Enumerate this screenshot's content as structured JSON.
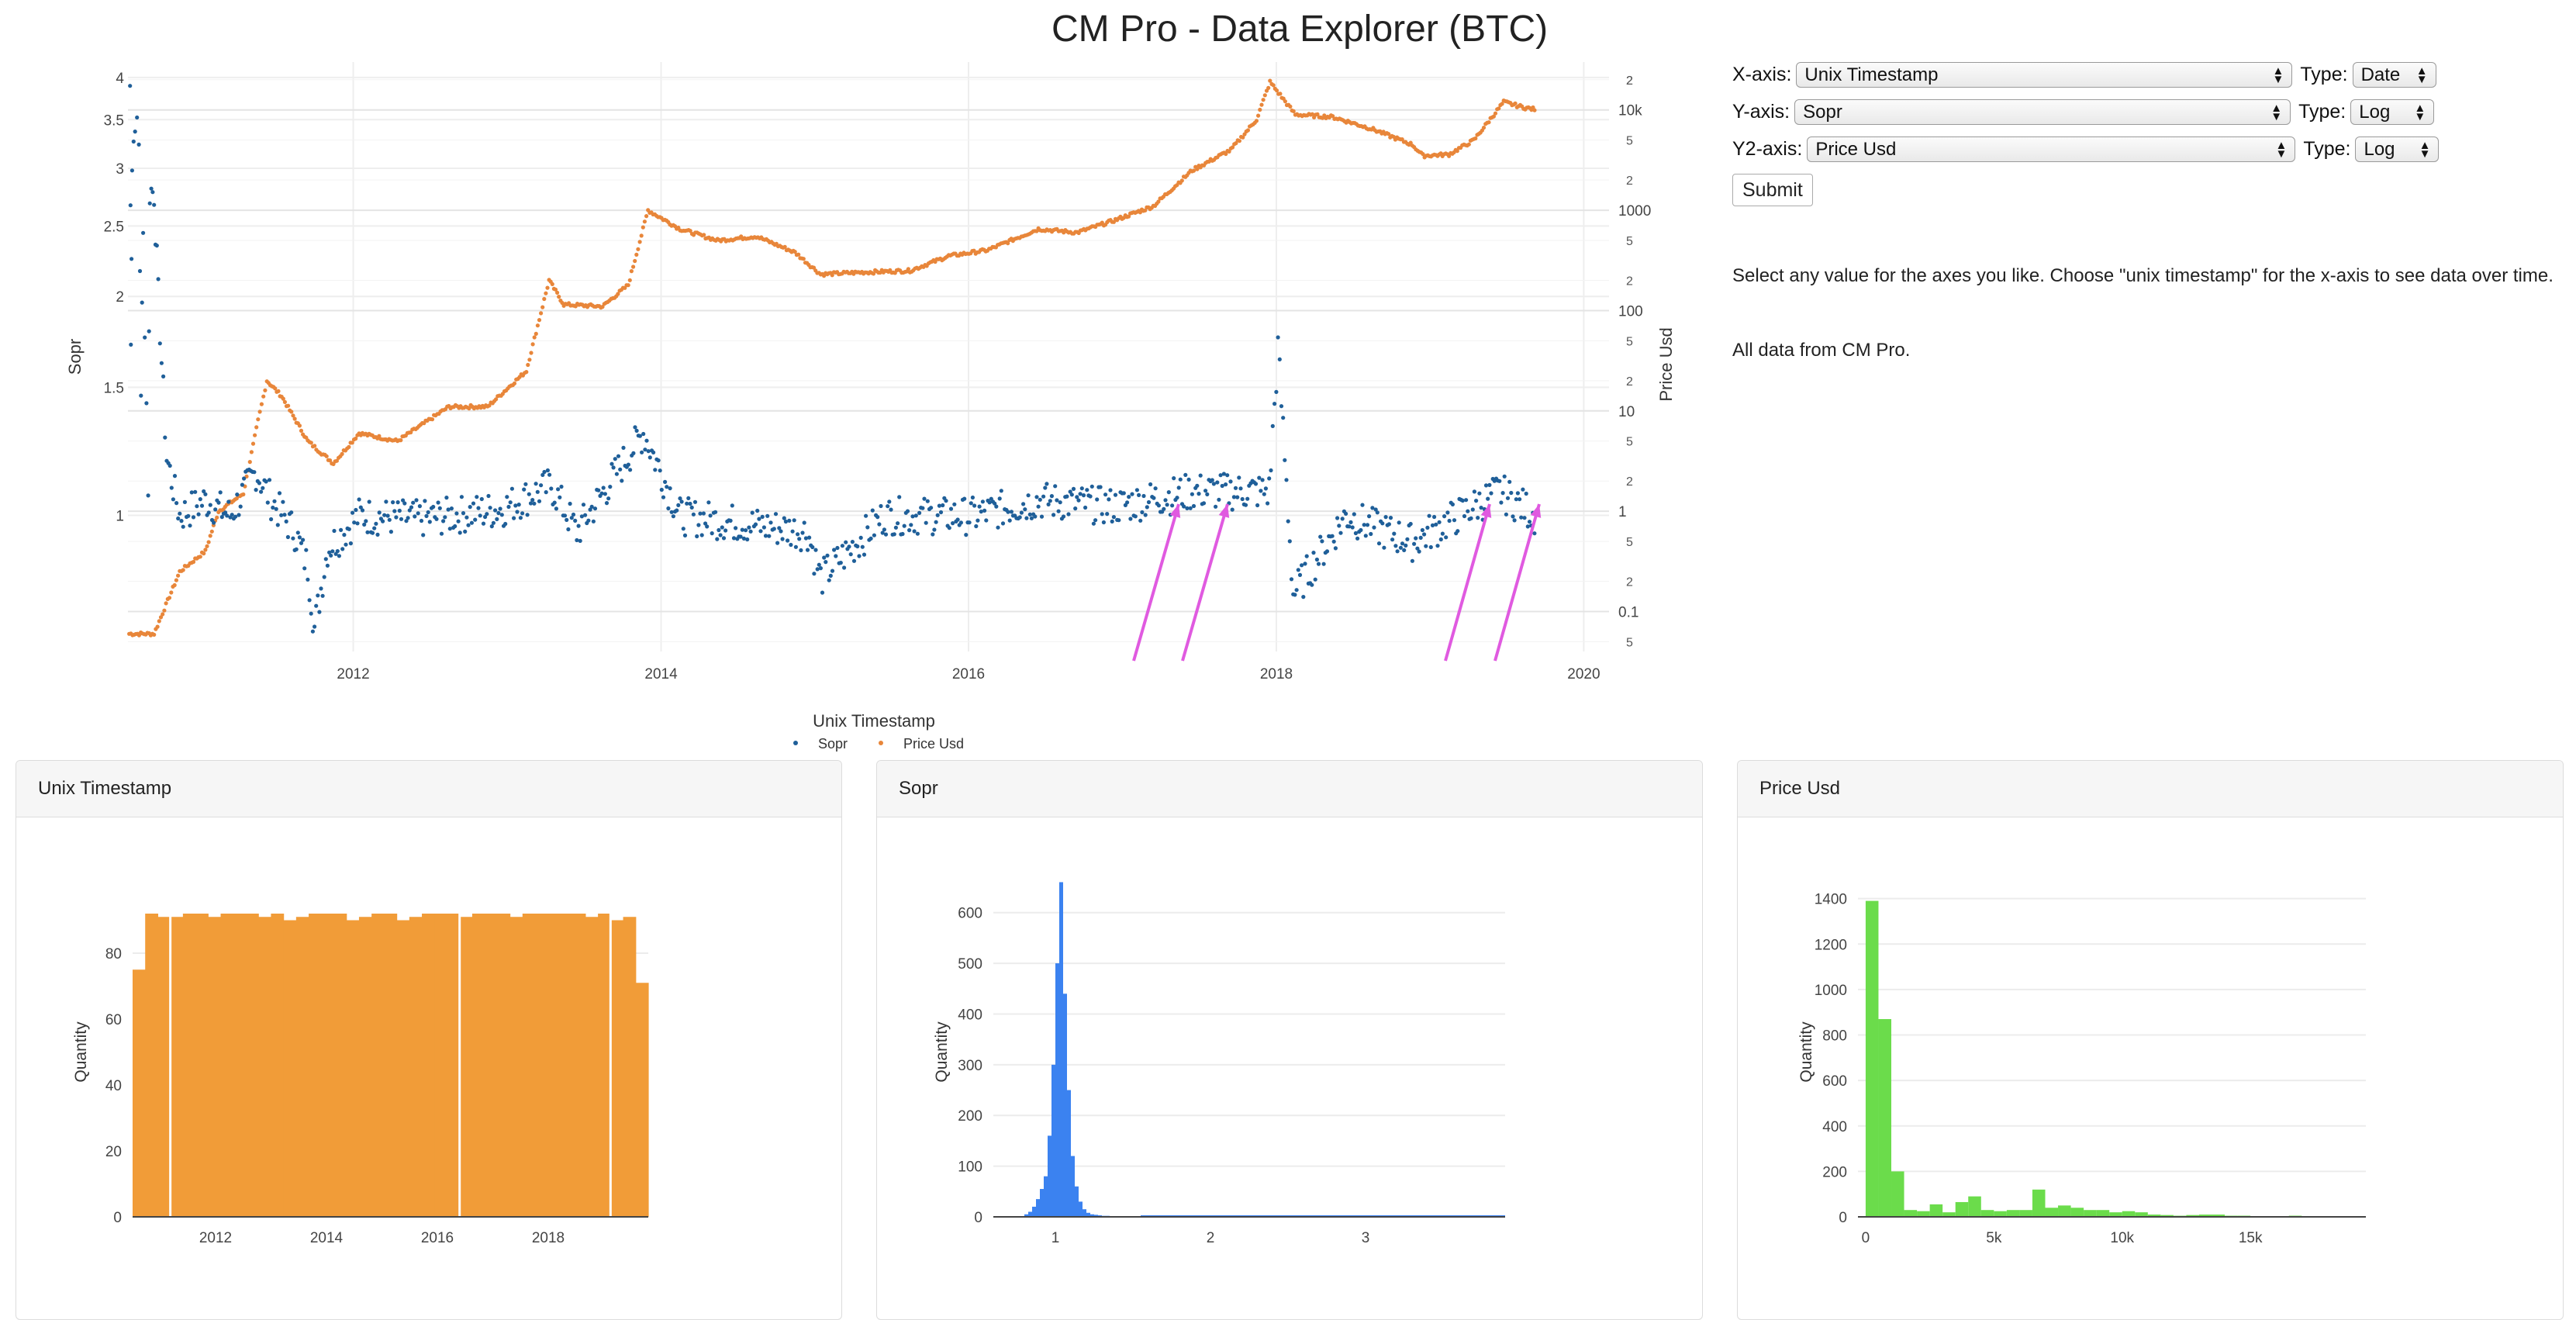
{
  "page_title": "CM Pro - Data Explorer (BTC)",
  "controls": {
    "x_axis": {
      "label": "X-axis:",
      "value": "Unix Timestamp",
      "type_label": "Type:",
      "type_value": "Date"
    },
    "y_axis": {
      "label": "Y-axis:",
      "value": "Sopr",
      "type_label": "Type:",
      "type_value": "Log"
    },
    "y2_axis": {
      "label": "Y2-axis:",
      "value": "Price Usd",
      "type_label": "Type:",
      "type_value": "Log"
    },
    "submit_label": "Submit"
  },
  "info": {
    "text1": "Select any value for the axes you like. Choose \"unix timestamp\" for the x-axis to see data over time.",
    "text2": "All data from CM Pro."
  },
  "colors": {
    "sopr": "#1f5f99",
    "price": "#e8863a",
    "hist_time": "#f19c38",
    "hist_sopr": "#3b82f0",
    "hist_price": "#6bdc4b",
    "arrow": "#e05ae0"
  },
  "chart_data": [
    {
      "type": "scatter",
      "xlabel": "Unix Timestamp",
      "ylabel": "Sopr",
      "y2label": "Price Usd",
      "x_scale": "date",
      "y_scale": "log",
      "y2_scale": "log",
      "xlim": [
        "2010-07-15",
        "2020-03-01"
      ],
      "ylim": [
        0.65,
        4.2
      ],
      "y2lim": [
        0.04,
        30000
      ],
      "x_ticks": [
        "2012",
        "2014",
        "2016",
        "2018",
        "2020"
      ],
      "y_ticks": [
        "1",
        "1.5",
        "2",
        "2.5",
        "3",
        "3.5",
        "4"
      ],
      "y2_ticks": [
        "0.1",
        "1",
        "10",
        "100",
        "1000",
        "10k"
      ],
      "y2_minor_labels": [
        "5",
        "2"
      ],
      "legend": [
        "Sopr",
        "Price Usd"
      ],
      "legend_position": "bottom",
      "series": [
        {
          "name": "Price Usd",
          "points": [
            [
              "2010-07-18",
              0.06
            ],
            [
              "2010-09-15",
              0.06
            ],
            [
              "2010-11-15",
              0.25
            ],
            [
              "2011-01-15",
              0.4
            ],
            [
              "2011-02-15",
              1.0
            ],
            [
              "2011-04-15",
              1.5
            ],
            [
              "2011-05-20",
              8
            ],
            [
              "2011-06-10",
              20
            ],
            [
              "2011-07-15",
              14
            ],
            [
              "2011-09-15",
              5
            ],
            [
              "2011-11-15",
              3
            ],
            [
              "2012-01-15",
              6
            ],
            [
              "2012-04-15",
              5
            ],
            [
              "2012-08-15",
              11
            ],
            [
              "2012-11-15",
              11
            ],
            [
              "2013-02-15",
              25
            ],
            [
              "2013-04-10",
              200
            ],
            [
              "2013-05-15",
              115
            ],
            [
              "2013-08-15",
              110
            ],
            [
              "2013-10-15",
              180
            ],
            [
              "2013-12-01",
              1000
            ],
            [
              "2014-02-15",
              650
            ],
            [
              "2014-05-15",
              500
            ],
            [
              "2014-08-15",
              550
            ],
            [
              "2014-11-15",
              380
            ],
            [
              "2015-01-15",
              230
            ],
            [
              "2015-04-15",
              240
            ],
            [
              "2015-08-15",
              250
            ],
            [
              "2015-11-15",
              350
            ],
            [
              "2016-02-15",
              400
            ],
            [
              "2016-06-15",
              650
            ],
            [
              "2016-09-15",
              600
            ],
            [
              "2016-12-15",
              800
            ],
            [
              "2017-03-15",
              1100
            ],
            [
              "2017-06-15",
              2500
            ],
            [
              "2017-09-15",
              4000
            ],
            [
              "2017-11-15",
              8000
            ],
            [
              "2017-12-17",
              19000
            ],
            [
              "2018-02-15",
              9000
            ],
            [
              "2018-05-15",
              8500
            ],
            [
              "2018-08-15",
              6500
            ],
            [
              "2018-11-20",
              4500
            ],
            [
              "2018-12-15",
              3500
            ],
            [
              "2019-02-15",
              3600
            ],
            [
              "2019-04-15",
              5000
            ],
            [
              "2019-06-25",
              12000
            ],
            [
              "2019-08-15",
              10500
            ],
            [
              "2019-09-10",
              10100
            ]
          ]
        },
        {
          "name": "Sopr",
          "points": [
            [
              "2010-07-20",
              3.9
            ],
            [
              "2010-07-25",
              3.0
            ],
            [
              "2010-08-01",
              3.55
            ],
            [
              "2010-08-10",
              3.2
            ],
            [
              "2010-08-20",
              2.4
            ],
            [
              "2010-09-05",
              2.8
            ],
            [
              "2010-09-15",
              2.78
            ],
            [
              "2010-09-25",
              2.0
            ],
            [
              "2010-07-22",
              1.8
            ],
            [
              "2010-08-15",
              1.5
            ],
            [
              "2010-09-01",
              1.1
            ],
            [
              "2010-10-15",
              1.2
            ],
            [
              "2010-11-15",
              1.0
            ],
            [
              "2011-01-15",
              1.05
            ],
            [
              "2011-03-15",
              1.0
            ],
            [
              "2011-05-15",
              1.15
            ],
            [
              "2011-06-20",
              1.05
            ],
            [
              "2011-08-15",
              0.95
            ],
            [
              "2011-09-15",
              0.85
            ],
            [
              "2011-10-01",
              0.7
            ],
            [
              "2011-11-01",
              0.9
            ],
            [
              "2012-01-15",
              1.0
            ],
            [
              "2012-06-15",
              0.99
            ],
            [
              "2012-12-15",
              1.02
            ],
            [
              "2013-04-15",
              1.1
            ],
            [
              "2013-06-15",
              0.95
            ],
            [
              "2013-11-20",
              1.3
            ],
            [
              "2014-02-15",
              1.0
            ],
            [
              "2014-06-15",
              0.98
            ],
            [
              "2014-12-15",
              0.95
            ],
            [
              "2015-01-15",
              0.82
            ],
            [
              "2015-06-15",
              1.0
            ],
            [
              "2016-01-15",
              1.0
            ],
            [
              "2016-06-15",
              1.05
            ],
            [
              "2016-12-15",
              1.03
            ],
            [
              "2017-06-15",
              1.08
            ],
            [
              "2017-12-15",
              1.08
            ],
            [
              "2018-01-05",
              1.7
            ],
            [
              "2018-02-10",
              0.78
            ],
            [
              "2018-06-15",
              1.0
            ],
            [
              "2018-11-20",
              0.92
            ],
            [
              "2019-01-15",
              0.96
            ],
            [
              "2019-06-15",
              1.08
            ],
            [
              "2019-09-10",
              1.0
            ]
          ]
        }
      ],
      "annotations": [
        "arrow",
        "arrow",
        "arrow",
        "arrow"
      ]
    },
    {
      "type": "bar",
      "title": "Unix Timestamp",
      "xlabel": "",
      "ylabel": "Quantity",
      "x_ticks": [
        "2012",
        "2014",
        "2016",
        "2018"
      ],
      "y_ticks": [
        "0",
        "20",
        "40",
        "60",
        "80"
      ],
      "ylim": [
        0,
        100
      ],
      "values": [
        75,
        92,
        91,
        91,
        92,
        92,
        91,
        92,
        92,
        92,
        91,
        92,
        90,
        91,
        92,
        92,
        92,
        90,
        91,
        92,
        92,
        90,
        91,
        92,
        92,
        92,
        91,
        92,
        92,
        92,
        91,
        92,
        92,
        92,
        92,
        92,
        91,
        92,
        90,
        91,
        71
      ]
    },
    {
      "type": "bar",
      "title": "Sopr",
      "xlabel": "",
      "ylabel": "Quantity",
      "x_ticks": [
        "1",
        "2",
        "3"
      ],
      "y_ticks": [
        "0",
        "100",
        "200",
        "300",
        "400",
        "500",
        "600"
      ],
      "xlim": [
        0.6,
        3.9
      ],
      "ylim": [
        0,
        650
      ],
      "bin_start": 0.8,
      "bin_width": 0.025,
      "values": [
        5,
        10,
        20,
        35,
        55,
        80,
        160,
        300,
        500,
        660,
        440,
        250,
        120,
        60,
        30,
        15,
        8,
        5,
        4,
        3,
        2,
        2,
        1,
        1,
        1,
        1,
        1,
        1,
        1,
        1
      ]
    },
    {
      "type": "bar",
      "title": "Price Usd",
      "xlabel": "",
      "ylabel": "Quantity",
      "x_ticks": [
        "0",
        "5k",
        "10k",
        "15k"
      ],
      "y_ticks": [
        "0",
        "200",
        "400",
        "600",
        "800",
        "1000",
        "1200",
        "1400"
      ],
      "xlim": [
        -300,
        19500
      ],
      "ylim": [
        0,
        1450
      ],
      "bin_width": 500,
      "values": [
        1390,
        870,
        200,
        30,
        25,
        55,
        20,
        65,
        90,
        30,
        25,
        30,
        30,
        120,
        40,
        50,
        40,
        30,
        30,
        20,
        25,
        20,
        10,
        8,
        5,
        8,
        10,
        10,
        5,
        5,
        3,
        3,
        3,
        5,
        3,
        2,
        3,
        2
      ]
    }
  ]
}
